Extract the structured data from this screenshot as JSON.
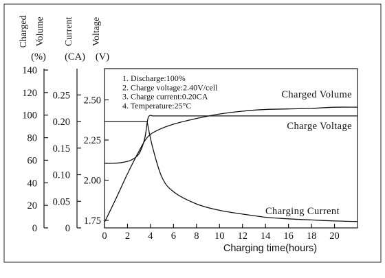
{
  "chart_data": {
    "type": "line",
    "xlabel": "Charging time(hours)",
    "x_ticks": [
      "0",
      "2",
      "4",
      "6",
      "8",
      "10",
      "12",
      "14",
      "16",
      "18",
      "20"
    ],
    "xlim": [
      0,
      22
    ],
    "axes": [
      {
        "id": "volume",
        "title_lines": [
          "Charged",
          "Volume"
        ],
        "unit": "(%)",
        "ylim": [
          0,
          140
        ],
        "ticks": [
          "0",
          "20",
          "40",
          "60",
          "80",
          "100",
          "120",
          "140"
        ]
      },
      {
        "id": "current",
        "title_lines": [
          "Current"
        ],
        "unit": "(CA)",
        "ylim": [
          0,
          0.3
        ],
        "ticks": [
          "0",
          "0.05",
          "0.10",
          "0.15",
          "0.20",
          "0.25"
        ]
      },
      {
        "id": "voltage",
        "title_lines": [
          "Voltage"
        ],
        "unit": "(V)",
        "ylim": [
          1.7,
          2.6
        ],
        "ticks": [
          "1.75",
          "2.00",
          "2.25",
          "2.50"
        ]
      }
    ],
    "notes": [
      "1. Discharge:100%",
      "2. Charge voltage:2.40V/cell",
      "3. Charge current:0.20CA",
      "4. Temperature:25°C"
    ],
    "series": [
      {
        "name": "Charged Volume",
        "axis": "volume",
        "x": [
          0,
          1,
          2,
          3,
          3.7,
          4.5,
          6,
          8,
          10,
          12,
          14,
          16,
          18,
          20,
          22
        ],
        "y": [
          5,
          26,
          48,
          68,
          80,
          86,
          92,
          97,
          101,
          103.5,
          105,
          105.5,
          106,
          107,
          107
        ]
      },
      {
        "name": "Charge Voltage",
        "axis": "voltage",
        "x": [
          0,
          0.7,
          1.5,
          2.3,
          3,
          3.5,
          3.8,
          4.2,
          5,
          6,
          8,
          10,
          12,
          14,
          16,
          18,
          20,
          22
        ],
        "y": [
          2.105,
          2.105,
          2.11,
          2.125,
          2.165,
          2.26,
          2.39,
          2.4,
          2.4,
          2.4,
          2.4,
          2.4,
          2.4,
          2.4,
          2.4,
          2.4,
          2.4,
          2.4
        ]
      },
      {
        "name": "Charging Current",
        "axis": "current",
        "x": [
          0,
          1,
          2,
          3,
          3.7,
          4.2,
          5,
          6,
          8,
          10,
          12,
          14,
          16,
          18,
          20,
          22
        ],
        "y": [
          0.2,
          0.2,
          0.2,
          0.2,
          0.2,
          0.15,
          0.095,
          0.068,
          0.045,
          0.033,
          0.026,
          0.02,
          0.017,
          0.015,
          0.013,
          0.012
        ]
      }
    ]
  }
}
